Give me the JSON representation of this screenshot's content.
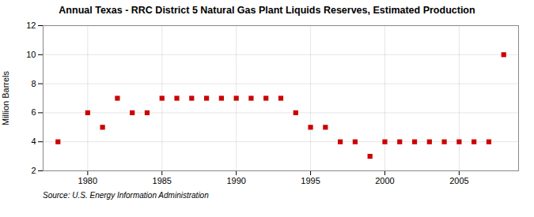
{
  "chart_data": {
    "type": "scatter",
    "title": "Annual Texas - RRC District 5 Natural Gas Plant Liquids Reserves, Estimated Production",
    "ylabel": "Million Barrels",
    "source": "Source: U.S. Energy Information Administration",
    "x": [
      1978,
      1980,
      1981,
      1982,
      1983,
      1984,
      1985,
      1986,
      1987,
      1988,
      1989,
      1990,
      1991,
      1992,
      1993,
      1994,
      1995,
      1996,
      1997,
      1998,
      1999,
      2000,
      2001,
      2002,
      2003,
      2004,
      2005,
      2006,
      2007,
      2008
    ],
    "values": [
      4.0,
      6.0,
      5.0,
      7.0,
      6.0,
      6.0,
      7.0,
      7.0,
      7.0,
      7.0,
      7.0,
      7.0,
      7.0,
      7.0,
      7.0,
      6.0,
      5.0,
      5.0,
      4.0,
      4.0,
      3.0,
      4.0,
      4.0,
      4.0,
      4.0,
      4.0,
      4.0,
      4.0,
      4.0,
      10.0
    ],
    "color": "#cc0000",
    "marker": "square",
    "xlim": [
      1977,
      2009
    ],
    "ylim": [
      2,
      12
    ],
    "xticks": [
      1980,
      1985,
      1990,
      1995,
      2000,
      2005
    ],
    "yticks": [
      2,
      4,
      6,
      8,
      10,
      12
    ],
    "grid": true
  }
}
